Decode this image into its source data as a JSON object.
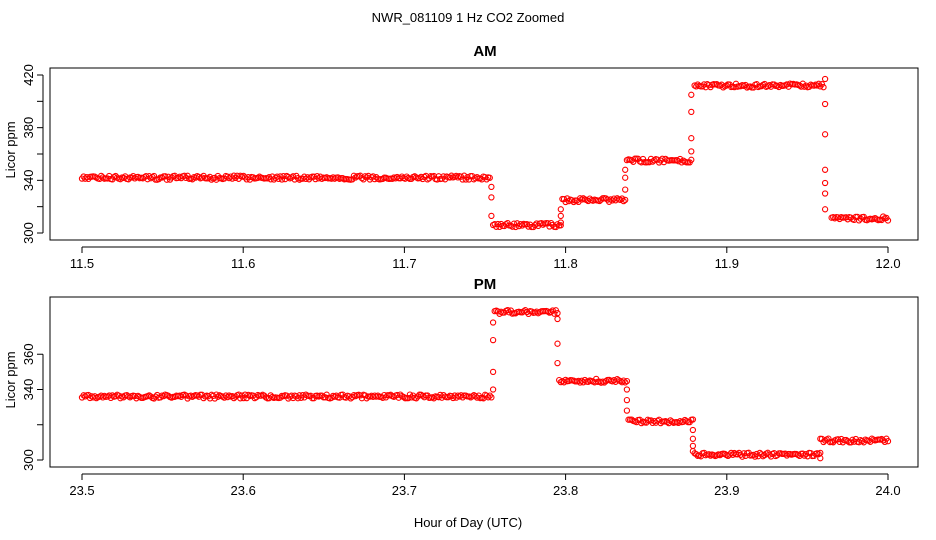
{
  "figure": {
    "title": "NWR_081109  1 Hz CO2 Zoomed",
    "xlabel": "Hour of Day (UTC)",
    "marker_color": "#ff0000"
  },
  "chart_data": [
    {
      "type": "scatter",
      "title": "AM",
      "xlabel": "Hour of Day (UTC)",
      "ylabel": "Licor ppm",
      "xlim": [
        11.5,
        12.0
      ],
      "ylim": [
        300,
        420
      ],
      "xticks": [
        "11.5",
        "11.6",
        "11.7",
        "11.8",
        "11.9",
        "12.0"
      ],
      "yticks": [
        "300",
        "340",
        "380",
        "420"
      ],
      "grid": false,
      "series": [
        {
          "marker": "open-circle",
          "color": "#ff0000",
          "segments": [
            {
              "x_start": 11.5,
              "x_end": 11.753,
              "y": 342
            },
            {
              "x_start": 11.755,
              "x_end": 11.797,
              "y": 306
            },
            {
              "x_start": 11.798,
              "x_end": 11.837,
              "y": 325
            },
            {
              "x_start": 11.838,
              "x_end": 11.878,
              "y": 355
            },
            {
              "x_start": 11.88,
              "x_end": 11.96,
              "y": 412
            },
            {
              "x_start": 11.965,
              "x_end": 12.0,
              "y": 311
            }
          ],
          "transitions": [
            {
              "x": 11.754,
              "y": [
                335,
                327,
                313
              ]
            },
            {
              "x": 11.797,
              "y": [
                308,
                313,
                318
              ]
            },
            {
              "x": 11.837,
              "y": [
                333,
                342,
                348
              ]
            },
            {
              "x": 11.878,
              "y": [
                362,
                372,
                392,
                405
              ]
            },
            {
              "x": 11.961,
              "y": [
                417,
                398,
                375,
                348,
                338,
                330,
                318
              ]
            }
          ]
        }
      ]
    },
    {
      "type": "scatter",
      "title": "PM",
      "xlabel": "Hour of Day (UTC)",
      "ylabel": "Licor ppm",
      "xlim": [
        23.5,
        24.0
      ],
      "ylim": [
        300,
        390
      ],
      "xticks": [
        "23.5",
        "23.6",
        "23.7",
        "23.8",
        "23.9",
        "24.0"
      ],
      "yticks": [
        "300",
        "340",
        "360"
      ],
      "grid": false,
      "series": [
        {
          "marker": "open-circle",
          "color": "#ff0000",
          "segments": [
            {
              "x_start": 23.5,
              "x_end": 23.754,
              "y": 336
            },
            {
              "x_start": 23.756,
              "x_end": 23.795,
              "y": 384
            },
            {
              "x_start": 23.796,
              "x_end": 23.838,
              "y": 345
            },
            {
              "x_start": 23.839,
              "x_end": 23.879,
              "y": 322
            },
            {
              "x_start": 23.88,
              "x_end": 23.958,
              "y": 303
            },
            {
              "x_start": 23.959,
              "x_end": 24.0,
              "y": 311
            }
          ],
          "transitions": [
            {
              "x": 23.755,
              "y": [
                340,
                350,
                368,
                378
              ]
            },
            {
              "x": 23.795,
              "y": [
                380,
                366,
                355
              ]
            },
            {
              "x": 23.838,
              "y": [
                340,
                334,
                328
              ]
            },
            {
              "x": 23.879,
              "y": [
                317,
                312,
                308,
                305
              ]
            },
            {
              "x": 23.958,
              "y": [
                301,
                312
              ]
            }
          ]
        }
      ]
    }
  ]
}
